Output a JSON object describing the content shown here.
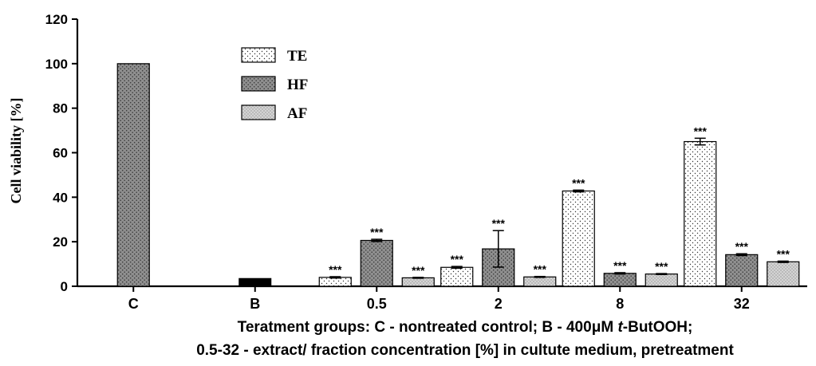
{
  "chart_data": {
    "type": "bar",
    "categories": [
      "C",
      "B",
      "0.5",
      "2",
      "8",
      "32"
    ],
    "ylabel": "Cell viability [%]",
    "xlabel_line1": "Teratment groups: C - nontreated control; B - 400μM t-ButOOH;",
    "xlabel_line2": "0.5-32 - extract/ fraction concentration [%] in cultute medium, pretreatment",
    "ylim": [
      0,
      120
    ],
    "yticks": [
      0,
      20,
      40,
      60,
      80,
      100,
      120
    ],
    "series": [
      {
        "name": "TE",
        "values": [
          null,
          null,
          4,
          8.5,
          42.8,
          65
        ],
        "errors": [
          null,
          null,
          0.3,
          0.4,
          0.4,
          1.5
        ],
        "stars": [
          null,
          null,
          "***",
          "***",
          "***",
          "***"
        ]
      },
      {
        "name": "HF",
        "values": [
          100,
          null,
          20.6,
          16.8,
          5.8,
          14.2
        ],
        "errors": [
          null,
          null,
          0.5,
          8.2,
          0.3,
          0.4
        ],
        "stars": [
          null,
          null,
          "***",
          "***",
          "***",
          "***"
        ]
      },
      {
        "name": "AF",
        "values": [
          null,
          null,
          3.8,
          4.2,
          5.5,
          11
        ],
        "errors": [
          null,
          null,
          0.2,
          0.2,
          0.2,
          0.3
        ],
        "stars": [
          null,
          null,
          "***",
          "***",
          "***",
          "***"
        ]
      }
    ],
    "control_bars": [
      {
        "category": "B",
        "value": 3.5,
        "color": "#000000"
      }
    ],
    "legend_position": "top-left-inside",
    "grid": false
  }
}
